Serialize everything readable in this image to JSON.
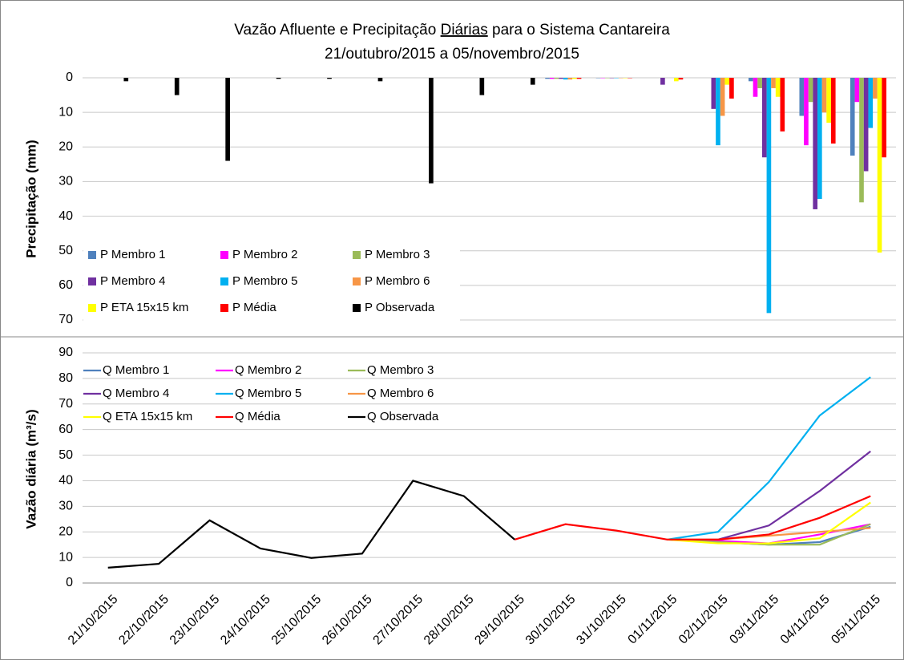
{
  "chart_data": [
    {
      "type": "bar",
      "title": [
        {
          "text": "Vazão Afluente e Precipitação "
        },
        {
          "text": "Diárias",
          "underline": true
        },
        {
          "text": " para o Sistema Cantareira"
        }
      ],
      "subtitle": "21/outubro/2015 a 05/novembro/2015",
      "y_label": "Precipitação (mm)",
      "ylim": [
        0,
        70
      ],
      "yticks": [
        0,
        10,
        20,
        30,
        40,
        50,
        60,
        70
      ],
      "inverted": true,
      "grid": true,
      "legend": "lower-left",
      "series": [
        {
          "name": "P Membro 1",
          "color": "#4f81bd",
          "values": [
            null,
            null,
            null,
            null,
            null,
            null,
            null,
            null,
            null,
            0.3,
            0.1,
            0,
            0,
            1,
            11,
            22.5
          ]
        },
        {
          "name": "P Membro 2",
          "color": "#ff00ff",
          "values": [
            null,
            null,
            null,
            null,
            null,
            null,
            null,
            null,
            null,
            0.3,
            0.1,
            0,
            0,
            5.5,
            19.5,
            7
          ]
        },
        {
          "name": "P Membro 3",
          "color": "#9bbb59",
          "values": [
            null,
            null,
            null,
            null,
            null,
            null,
            null,
            null,
            null,
            0.3,
            0.1,
            0,
            0,
            3,
            7,
            36
          ]
        },
        {
          "name": "P Membro 4",
          "color": "#7030a0",
          "values": [
            null,
            null,
            null,
            null,
            null,
            null,
            null,
            null,
            null,
            0.3,
            0.1,
            2,
            9,
            23,
            38,
            27
          ]
        },
        {
          "name": "P Membro 5",
          "color": "#00b0f0",
          "values": [
            null,
            null,
            null,
            null,
            null,
            null,
            null,
            null,
            null,
            0.5,
            0.1,
            0,
            19.5,
            68,
            35,
            14.5
          ]
        },
        {
          "name": "P Membro 6",
          "color": "#f79646",
          "values": [
            null,
            null,
            null,
            null,
            null,
            null,
            null,
            null,
            null,
            0.5,
            0.1,
            0,
            11,
            3,
            10,
            6
          ]
        },
        {
          "name": "P ETA 15x15 km",
          "color": "#ffff00",
          "values": [
            null,
            null,
            null,
            null,
            null,
            null,
            null,
            null,
            null,
            0.3,
            0.1,
            1,
            2,
            5.5,
            13,
            50.5
          ]
        },
        {
          "name": "P Média",
          "color": "#ff0000",
          "values": [
            null,
            null,
            null,
            null,
            null,
            null,
            null,
            null,
            null,
            0.3,
            0.1,
            0.5,
            6,
            15.5,
            19,
            23
          ]
        },
        {
          "name": "P Observada",
          "color": "#000000",
          "values": [
            1,
            5,
            24,
            0.3,
            0.3,
            1,
            30.5,
            5,
            2,
            null,
            null,
            null,
            null,
            null,
            null,
            null
          ]
        }
      ]
    },
    {
      "type": "line",
      "y_label": "Vazão diária (m³/s)",
      "ylim": [
        0,
        90
      ],
      "yticks": [
        0,
        10,
        20,
        30,
        40,
        50,
        60,
        70,
        80,
        90
      ],
      "grid": true,
      "legend": "upper-left",
      "categories": [
        "21/10/2015",
        "22/10/2015",
        "23/10/2015",
        "24/10/2015",
        "25/10/2015",
        "26/10/2015",
        "27/10/2015",
        "28/10/2015",
        "29/10/2015",
        "30/10/2015",
        "31/10/2015",
        "01/11/2015",
        "02/11/2015",
        "03/11/2015",
        "04/11/2015",
        "05/11/2015"
      ],
      "series": [
        {
          "name": "Q Membro 1",
          "color": "#4f81bd",
          "values": [
            null,
            null,
            null,
            null,
            null,
            null,
            null,
            null,
            null,
            null,
            null,
            17,
            16,
            15,
            16,
            22
          ]
        },
        {
          "name": "Q Membro 2",
          "color": "#ff00ff",
          "values": [
            null,
            null,
            null,
            null,
            null,
            null,
            null,
            null,
            null,
            null,
            null,
            17,
            16.5,
            15.5,
            19,
            23
          ]
        },
        {
          "name": "Q Membro 3",
          "color": "#9bbb59",
          "values": [
            null,
            null,
            null,
            null,
            null,
            null,
            null,
            null,
            null,
            null,
            null,
            17,
            16,
            15,
            15,
            23
          ]
        },
        {
          "name": "Q Membro 4",
          "color": "#7030a0",
          "values": [
            null,
            null,
            null,
            null,
            null,
            null,
            null,
            null,
            null,
            null,
            null,
            17,
            17,
            22.5,
            36,
            51.5
          ]
        },
        {
          "name": "Q Membro 5",
          "color": "#00b0f0",
          "values": [
            null,
            null,
            null,
            null,
            null,
            null,
            null,
            null,
            null,
            null,
            null,
            17,
            20,
            39.5,
            65.5,
            80.5
          ]
        },
        {
          "name": "Q Membro 6",
          "color": "#f79646",
          "values": [
            null,
            null,
            null,
            null,
            null,
            null,
            null,
            null,
            null,
            null,
            null,
            17,
            17,
            18.5,
            20,
            21.5
          ]
        },
        {
          "name": "Q ETA 15x15 km",
          "color": "#ffff00",
          "values": [
            null,
            null,
            null,
            null,
            null,
            null,
            null,
            null,
            null,
            null,
            null,
            17,
            15.5,
            15.5,
            17.5,
            31.5
          ]
        },
        {
          "name": "Q Média",
          "color": "#ff0000",
          "values": [
            null,
            null,
            null,
            null,
            null,
            null,
            null,
            null,
            17,
            23,
            20.5,
            17,
            17,
            19,
            25.5,
            34
          ]
        },
        {
          "name": "Q Observada",
          "color": "#000000",
          "values": [
            6,
            7.5,
            24.5,
            13.5,
            9.8,
            11.5,
            40,
            34,
            17,
            null,
            null,
            null,
            null,
            null,
            null,
            null
          ]
        }
      ]
    }
  ]
}
